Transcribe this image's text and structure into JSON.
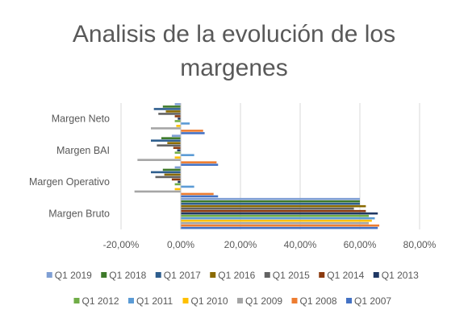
{
  "chart_data": {
    "type": "bar",
    "orientation": "horizontal",
    "title": "Analisis de la evolución de los margenes",
    "title_lines": [
      "Analisis de la evolución de los",
      "margenes"
    ],
    "categories": [
      "Margen Neto",
      "Margen BAI",
      "Margen Operativo",
      "Margen Bruto"
    ],
    "xlim": [
      -0.2,
      0.8
    ],
    "x_ticks": [
      -0.2,
      0,
      0.2,
      0.4,
      0.6,
      0.8
    ],
    "x_tick_labels": [
      "-20,00%",
      "0,00%",
      "20,00%",
      "40,00%",
      "60,00%",
      "80,00%"
    ],
    "grid": true,
    "legend_position": "bottom",
    "series": [
      {
        "name": "Q1 2019",
        "color": "#7F9FD4",
        "values": [
          -0.02,
          -0.03,
          -0.02,
          0.6
        ]
      },
      {
        "name": "Q1 2018",
        "color": "#3E7A2A",
        "values": [
          -0.06,
          -0.065,
          -0.06,
          0.6
        ]
      },
      {
        "name": "Q1 2017",
        "color": "#2E5E8E",
        "values": [
          -0.09,
          -0.1,
          -0.1,
          0.6
        ]
      },
      {
        "name": "Q1 2016",
        "color": "#8A6A00",
        "values": [
          -0.05,
          -0.045,
          -0.055,
          0.62
        ]
      },
      {
        "name": "Q1 2015",
        "color": "#636363",
        "values": [
          -0.075,
          -0.08,
          -0.085,
          0.58
        ]
      },
      {
        "name": "Q1 2014",
        "color": "#8B3A0F",
        "values": [
          -0.02,
          -0.025,
          -0.03,
          0.62
        ]
      },
      {
        "name": "Q1 2013",
        "color": "#203864",
        "values": [
          -0.01,
          -0.012,
          -0.01,
          0.66
        ]
      },
      {
        "name": "Q1 2012",
        "color": "#70AD47",
        "values": [
          -0.02,
          -0.02,
          -0.02,
          0.63
        ]
      },
      {
        "name": "Q1 2011",
        "color": "#5B9BD5",
        "values": [
          0.03,
          0.045,
          0.045,
          0.65
        ]
      },
      {
        "name": "Q1 2010",
        "color": "#FFC000",
        "values": [
          -0.015,
          -0.02,
          -0.02,
          0.64
        ]
      },
      {
        "name": "Q1 2009",
        "color": "#A5A5A5",
        "values": [
          -0.1,
          -0.145,
          -0.155,
          0.63
        ]
      },
      {
        "name": "Q1 2008",
        "color": "#ED7D31",
        "values": [
          0.075,
          0.12,
          0.11,
          0.665
        ]
      },
      {
        "name": "Q1 2007",
        "color": "#4472C4",
        "values": [
          0.08,
          0.125,
          0.125,
          0.66
        ]
      }
    ]
  }
}
